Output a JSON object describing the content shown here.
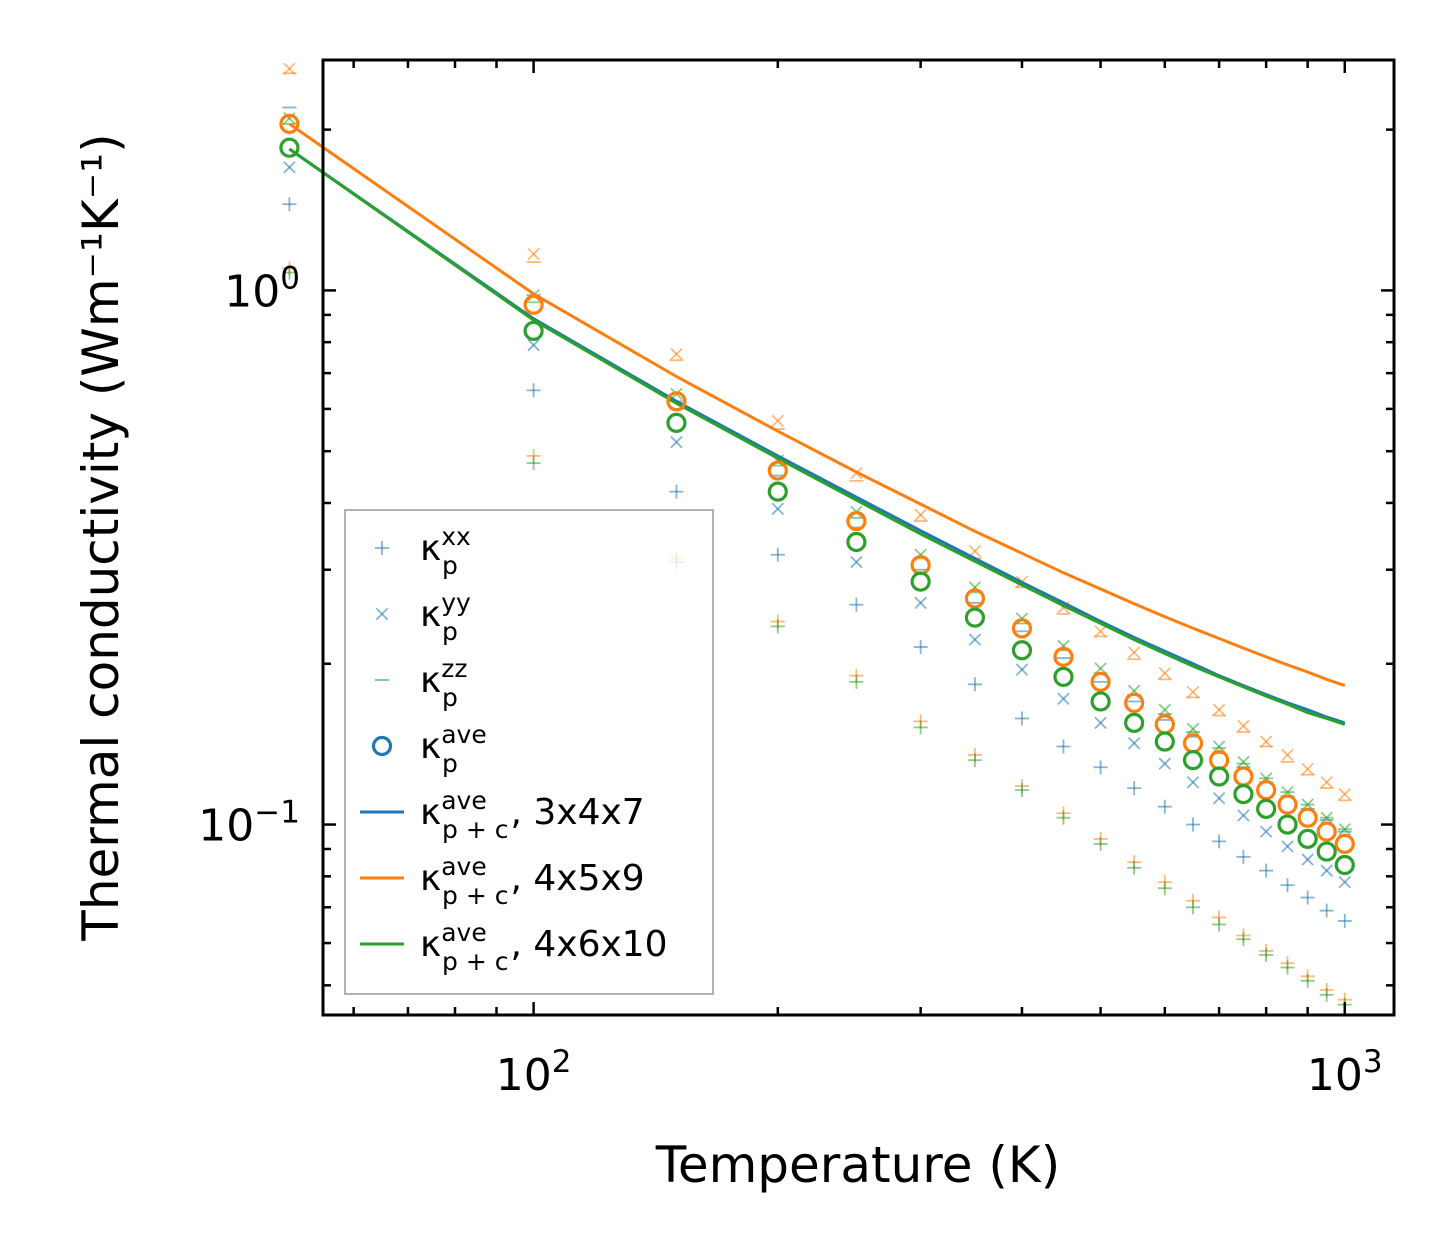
{
  "chart_data": {
    "type": "scatter",
    "xscale": "log",
    "yscale": "log",
    "xlim": [
      55,
      1150
    ],
    "ylim": [
      0.044,
      2.7
    ],
    "xlabel": "Temperature (K)",
    "ylabel": "Thermal conductivity (Wm⁻¹K⁻¹)",
    "x_ticks": [
      {
        "value": 100,
        "base": "10",
        "exp": "2"
      },
      {
        "value": 1000,
        "base": "10",
        "exp": "3"
      }
    ],
    "y_ticks": [
      {
        "value": 1,
        "base": "10",
        "exp": "0"
      },
      {
        "value": 0.1,
        "base": "10",
        "exp": "−1"
      }
    ],
    "temperatures": [
      50,
      100,
      150,
      200,
      250,
      300,
      350,
      400,
      450,
      500,
      550,
      600,
      650,
      700,
      750,
      800,
      850,
      900,
      950,
      1000
    ],
    "colors": {
      "blue": "#1f77b4",
      "orange": "#ff7f0e",
      "green": "#2ca02c"
    },
    "markers": [
      {
        "name": "kxx-3x4x7",
        "color": "blue",
        "symbol": "plus",
        "values": [
          1.45,
          0.65,
          0.42,
          0.32,
          0.258,
          0.215,
          0.183,
          0.158,
          0.14,
          0.128,
          0.117,
          0.108,
          0.1,
          0.093,
          0.087,
          0.082,
          0.077,
          0.073,
          0.069,
          0.066
        ]
      },
      {
        "name": "kyy-3x4x7",
        "color": "blue",
        "symbol": "cross",
        "values": [
          1.7,
          0.79,
          0.52,
          0.39,
          0.31,
          0.26,
          0.222,
          0.195,
          0.172,
          0.155,
          0.142,
          0.13,
          0.12,
          0.112,
          0.104,
          0.097,
          0.091,
          0.086,
          0.082,
          0.078
        ]
      },
      {
        "name": "kzz-3x4x7",
        "color": "blue",
        "symbol": "dash",
        "values": [
          2.2,
          0.98,
          0.6,
          0.45,
          0.36,
          0.3,
          0.26,
          0.23,
          0.205,
          0.185,
          0.17,
          0.157,
          0.146,
          0.136,
          0.128,
          0.12,
          0.113,
          0.107,
          0.102,
          0.097
        ]
      },
      {
        "name": "kxx-4x5x9",
        "color": "orange",
        "symbol": "plus",
        "values": [
          1.1,
          0.49,
          0.315,
          0.24,
          0.19,
          0.156,
          0.135,
          0.118,
          0.105,
          0.094,
          0.085,
          0.078,
          0.072,
          0.067,
          0.062,
          0.058,
          0.055,
          0.052,
          0.049,
          0.047
        ]
      },
      {
        "name": "kyy-4x5x9",
        "color": "orange",
        "symbol": "cross",
        "values": [
          2.6,
          1.17,
          0.76,
          0.57,
          0.455,
          0.38,
          0.325,
          0.285,
          0.255,
          0.23,
          0.21,
          0.192,
          0.177,
          0.164,
          0.153,
          0.143,
          0.135,
          0.127,
          0.12,
          0.114
        ]
      },
      {
        "name": "kzz-4x5x9",
        "color": "orange",
        "symbol": "dash",
        "values": [
          2.55,
          1.13,
          0.74,
          0.55,
          0.44,
          0.37,
          0.315,
          0.278,
          0.248,
          0.225,
          0.204,
          0.187,
          0.173,
          0.16,
          0.149,
          0.14,
          0.131,
          0.124,
          0.117,
          0.111
        ]
      },
      {
        "name": "kxx-4x6x10",
        "color": "green",
        "symbol": "plus",
        "values": [
          1.08,
          0.475,
          0.31,
          0.235,
          0.185,
          0.152,
          0.132,
          0.116,
          0.103,
          0.092,
          0.083,
          0.076,
          0.07,
          0.065,
          0.061,
          0.057,
          0.054,
          0.051,
          0.048,
          0.046
        ]
      },
      {
        "name": "kyy-4x6x10",
        "color": "green",
        "symbol": "cross",
        "values": [
          2.1,
          0.98,
          0.64,
          0.48,
          0.385,
          0.32,
          0.278,
          0.243,
          0.216,
          0.196,
          0.178,
          0.164,
          0.151,
          0.14,
          0.131,
          0.122,
          0.115,
          0.109,
          0.103,
          0.098
        ]
      },
      {
        "name": "kzz-4x6x10",
        "color": "green",
        "symbol": "dash",
        "values": [
          2.05,
          0.95,
          0.62,
          0.47,
          0.375,
          0.315,
          0.272,
          0.238,
          0.212,
          0.192,
          0.175,
          0.161,
          0.149,
          0.139,
          0.13,
          0.122,
          0.115,
          0.109,
          0.103,
          0.098
        ]
      }
    ],
    "averages": [
      {
        "name": "kave-4x5x9",
        "color": "orange",
        "values": [
          2.05,
          0.94,
          0.62,
          0.46,
          0.37,
          0.306,
          0.265,
          0.233,
          0.206,
          0.185,
          0.169,
          0.154,
          0.142,
          0.132,
          0.123,
          0.116,
          0.109,
          0.103,
          0.097,
          0.092
        ]
      },
      {
        "name": "kave-4x6x10",
        "color": "green",
        "values": [
          1.85,
          0.84,
          0.565,
          0.42,
          0.338,
          0.285,
          0.244,
          0.212,
          0.189,
          0.17,
          0.155,
          0.143,
          0.132,
          0.123,
          0.114,
          0.107,
          0.1,
          0.094,
          0.089,
          0.084
        ]
      }
    ],
    "lines": [
      {
        "name": "kpc-3x4x7",
        "color": "blue",
        "values": [
          1.84,
          0.885,
          0.62,
          0.49,
          0.41,
          0.355,
          0.315,
          0.284,
          0.26,
          0.24,
          0.224,
          0.211,
          0.2,
          0.19,
          0.182,
          0.175,
          0.169,
          0.164,
          0.159,
          0.155
        ]
      },
      {
        "name": "kpc-4x5x9",
        "color": "orange",
        "values": [
          2.05,
          0.985,
          0.69,
          0.545,
          0.457,
          0.398,
          0.354,
          0.322,
          0.296,
          0.276,
          0.259,
          0.245,
          0.233,
          0.223,
          0.214,
          0.206,
          0.199,
          0.193,
          0.187,
          0.182
        ]
      },
      {
        "name": "kpc-4x6x10",
        "color": "green",
        "values": [
          1.84,
          0.88,
          0.615,
          0.485,
          0.405,
          0.35,
          0.311,
          0.281,
          0.257,
          0.238,
          0.222,
          0.209,
          0.198,
          0.189,
          0.181,
          0.174,
          0.168,
          0.162,
          0.158,
          0.154
        ]
      }
    ],
    "legend": {
      "position": "lower-left",
      "entries": [
        {
          "symbol": "plus",
          "color": "blue",
          "kappa": "κ",
          "sub": "p",
          "sup": "xx",
          "suffix": ""
        },
        {
          "symbol": "cross",
          "color": "blue",
          "kappa": "κ",
          "sub": "p",
          "sup": "yy",
          "suffix": ""
        },
        {
          "symbol": "dash",
          "color": "blue",
          "kappa": "κ",
          "sub": "p",
          "sup": "zz",
          "suffix": ""
        },
        {
          "symbol": "circle",
          "color": "blue",
          "kappa": "κ",
          "sub": "p",
          "sup": "ave",
          "suffix": ""
        },
        {
          "symbol": "line",
          "color": "blue",
          "kappa": "κ",
          "sub": "p + c",
          "sup": "ave",
          "suffix": ", 3x4x7"
        },
        {
          "symbol": "line",
          "color": "orange",
          "kappa": "κ",
          "sub": "p + c",
          "sup": "ave",
          "suffix": ", 4x5x9"
        },
        {
          "symbol": "line",
          "color": "green",
          "kappa": "κ",
          "sub": "p + c",
          "sup": "ave",
          "suffix": ", 4x6x10"
        }
      ]
    }
  }
}
